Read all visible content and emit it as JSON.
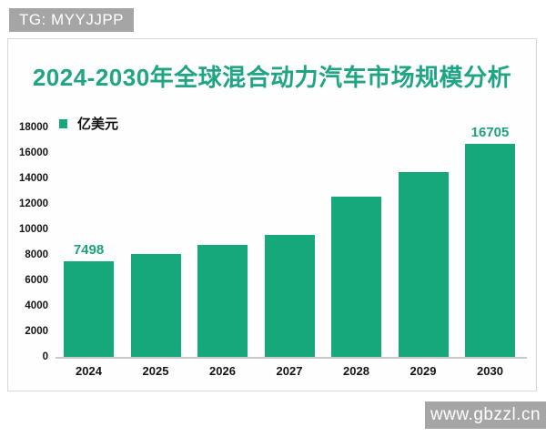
{
  "watermark_top": "TG: MYYJJPP",
  "watermark_bottom": "www.gbzzl.cn",
  "chart_data": {
    "type": "bar",
    "title": "2024-2030年全球混合动力汽车市场规模分析",
    "legend_label": "亿美元",
    "legend_position": "top-left",
    "categories": [
      "2024",
      "2025",
      "2026",
      "2027",
      "2028",
      "2029",
      "2030"
    ],
    "values": [
      7498,
      8100,
      8800,
      9600,
      12600,
      14500,
      16705
    ],
    "value_labels": [
      "7498",
      "",
      "",
      "",
      "",
      "",
      "16705"
    ],
    "xlabel": "",
    "ylabel": "",
    "ylim": [
      0,
      18000
    ],
    "yticks": [
      0,
      2000,
      4000,
      6000,
      8000,
      10000,
      12000,
      14000,
      16000,
      18000
    ],
    "grid": false,
    "colors": {
      "bar": "#16a87a",
      "title": "#1fa584",
      "value_label": "#1ca37c",
      "legend_swatch": "#16a87a",
      "axis_line": "#c9c9c9",
      "tick_text": "#141414",
      "watermark_bg": "#a5a5a5",
      "watermark_text": "#ffffff"
    }
  }
}
